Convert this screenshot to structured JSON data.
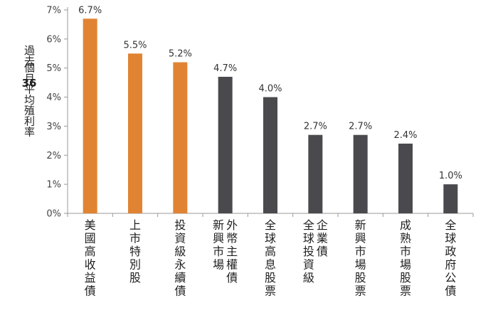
{
  "chart_data": {
    "type": "bar",
    "title": "",
    "xlabel": "",
    "ylabel": "過去36個月平均殖利率",
    "ylabel_lines": [
      "過去",
      "36",
      "個月平均殖利率"
    ],
    "ylim": [
      0,
      7
    ],
    "y_tick_labels": [
      "0%",
      "1%",
      "2%",
      "3%",
      "4%",
      "5%",
      "6%",
      "7%"
    ],
    "grid": false,
    "categories": [
      {
        "label": "美國高收益債",
        "cols": [
          "美國高收益債"
        ]
      },
      {
        "label": "上市特別股",
        "cols": [
          "上市特別股"
        ]
      },
      {
        "label": "投資級永續債",
        "cols": [
          "投資級永續債"
        ]
      },
      {
        "label": "新興市場外幣主權債",
        "cols": [
          "新興市場",
          "外幣主權債"
        ]
      },
      {
        "label": "全球高息股票",
        "cols": [
          "全球高息股票"
        ]
      },
      {
        "label": "全球企業投資級債",
        "cols": [
          "全球投資級",
          "企業債"
        ]
      },
      {
        "label": "新興市場股票",
        "cols": [
          "新興市場股票"
        ]
      },
      {
        "label": "成熟市場股票",
        "cols": [
          "成熟市場股票"
        ]
      },
      {
        "label": "全球政府公債",
        "cols": [
          "全球政府公債"
        ]
      }
    ],
    "values": [
      6.7,
      5.5,
      5.2,
      4.7,
      4.0,
      2.7,
      2.7,
      2.4,
      1.0
    ],
    "data_labels": [
      "6.7%",
      "5.5%",
      "5.2%",
      "4.7%",
      "4.0%",
      "2.7%",
      "2.7%",
      "2.4%",
      "1.0%"
    ],
    "bar_colors": [
      "#E08433",
      "#E08433",
      "#E08433",
      "#4A4A4E",
      "#4A4A4E",
      "#4A4A4E",
      "#4A4A4E",
      "#4A4A4E",
      "#4A4A4E"
    ],
    "axis_color": "#999999"
  }
}
